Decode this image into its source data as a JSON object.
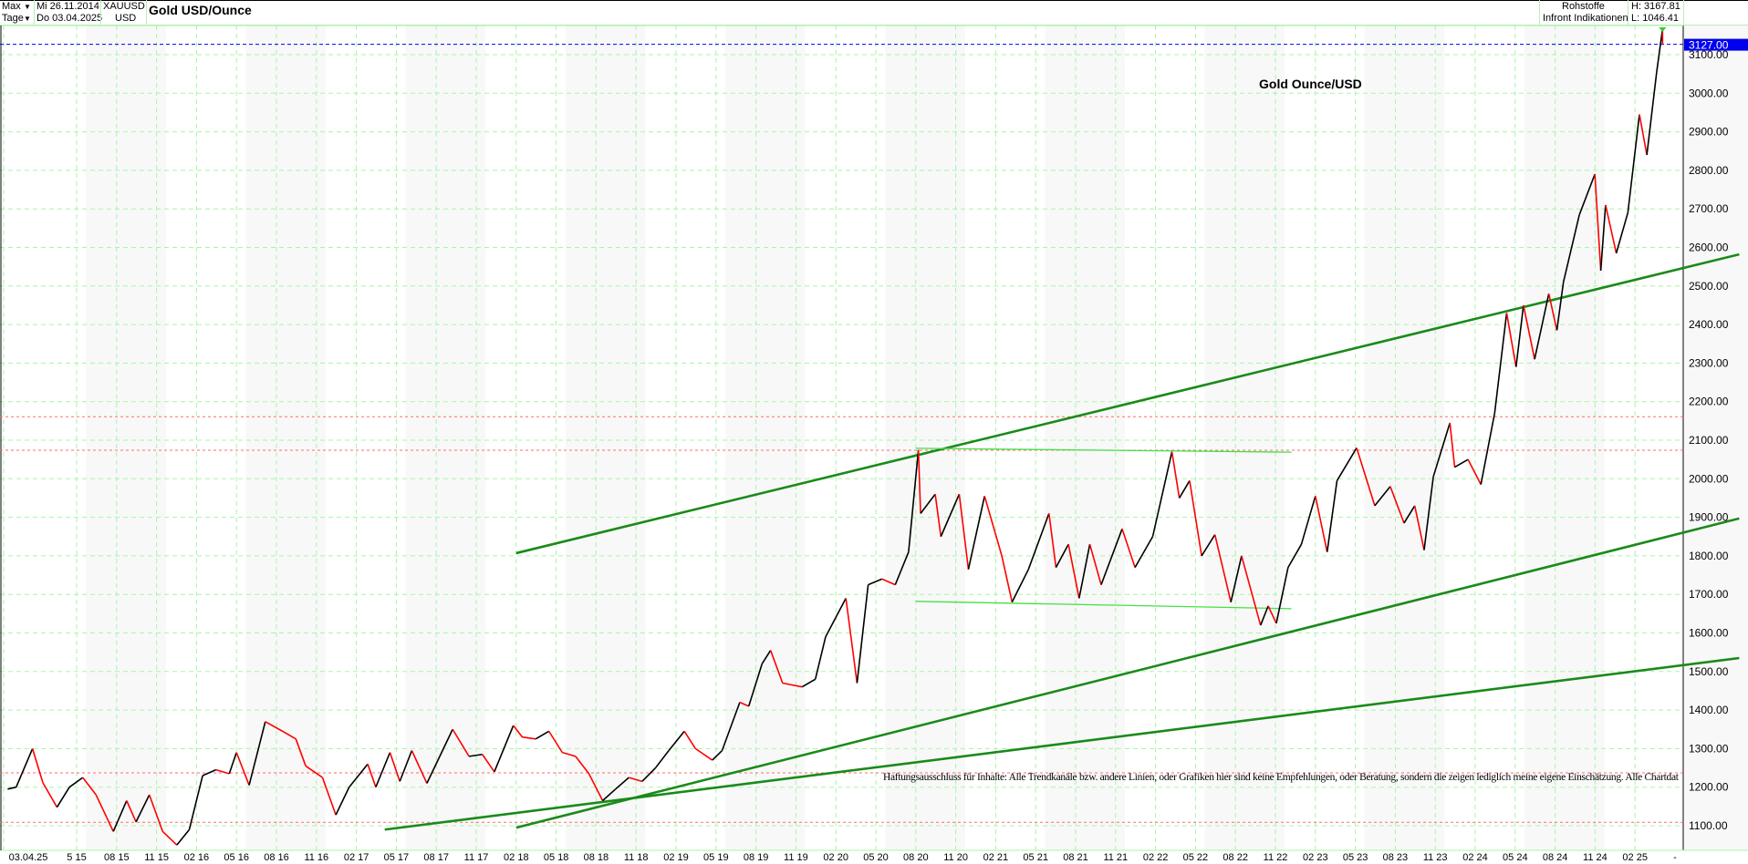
{
  "header": {
    "range_select": "Max",
    "interval_select": "Tage",
    "date_from": "Mi 26.11.2014",
    "date_to": "Do 03.04.2025",
    "symbol": "XAUUSD",
    "currency": "USD",
    "title": "Gold USD/Ounce",
    "category": "Rohstoffe",
    "source": "Infront Indikationen",
    "high": "H: 3167.81",
    "low": "L: 1046.41",
    "dropdown_icon": "triangle-down-icon"
  },
  "colors": {
    "up": "#000000",
    "down": "#ff0000",
    "grid": "#a8f5a8",
    "channel": "#1a8a1a",
    "range_lines": "#44e044",
    "support_resistance": "#ff6b6b",
    "current_price": "#0000ee"
  },
  "chart_data": {
    "type": "line",
    "title": "Gold Ounce/USD",
    "current_price_label": "3127.00",
    "ylim": [
      1050,
      3160
    ],
    "y_ticks": [
      "1100.00",
      "1200.00",
      "1300.00",
      "1400.00",
      "1500.00",
      "1600.00",
      "1700.00",
      "1800.00",
      "1900.00",
      "2000.00",
      "2100.00",
      "2200.00",
      "2300.00",
      "2400.00",
      "2500.00",
      "2600.00",
      "2700.00",
      "2800.00",
      "2900.00",
      "3000.00",
      "3100.00"
    ],
    "x_first_label": "03.04.25",
    "x_last_label": "-",
    "x_ticks": [
      "5 15",
      "08 15",
      "11 15",
      "02 16",
      "05 16",
      "08 16",
      "11 16",
      "02 17",
      "05 17",
      "08 17",
      "11 17",
      "02 18",
      "05 18",
      "08 18",
      "11 18",
      "02 19",
      "05 19",
      "08 19",
      "11 19",
      "02 20",
      "05 20",
      "08 20",
      "11 20",
      "02 21",
      "05 21",
      "08 21",
      "11 21",
      "02 22",
      "05 22",
      "08 22",
      "11 22",
      "02 23",
      "05 23",
      "08 23",
      "11 23",
      "02 24",
      "05 24",
      "08 24",
      "11 24",
      "02 25"
    ],
    "grid": true,
    "series": [
      {
        "points": [
          [
            "2014-11-26",
            1195
          ],
          [
            "2014-12-15",
            1200
          ],
          [
            "2015-01-22",
            1300
          ],
          [
            "2015-02-15",
            1212
          ],
          [
            "2015-03-17",
            1148
          ],
          [
            "2015-04-15",
            1200
          ],
          [
            "2015-05-15",
            1225
          ],
          [
            "2015-06-15",
            1180
          ],
          [
            "2015-07-24",
            1085
          ],
          [
            "2015-08-24",
            1165
          ],
          [
            "2015-09-15",
            1110
          ],
          [
            "2015-10-15",
            1180
          ],
          [
            "2015-11-15",
            1085
          ],
          [
            "2015-12-17",
            1050
          ],
          [
            "2016-01-15",
            1090
          ],
          [
            "2016-02-15",
            1230
          ],
          [
            "2016-03-15",
            1245
          ],
          [
            "2016-04-15",
            1235
          ],
          [
            "2016-05-01",
            1290
          ],
          [
            "2016-05-30",
            1205
          ],
          [
            "2016-07-06",
            1370
          ],
          [
            "2016-08-15",
            1345
          ],
          [
            "2016-09-15",
            1325
          ],
          [
            "2016-10-07",
            1255
          ],
          [
            "2016-11-15",
            1225
          ],
          [
            "2016-12-15",
            1128
          ],
          [
            "2017-01-15",
            1200
          ],
          [
            "2017-02-27",
            1260
          ],
          [
            "2017-03-15",
            1200
          ],
          [
            "2017-04-17",
            1290
          ],
          [
            "2017-05-09",
            1215
          ],
          [
            "2017-06-06",
            1295
          ],
          [
            "2017-07-10",
            1210
          ],
          [
            "2017-09-08",
            1350
          ],
          [
            "2017-10-15",
            1280
          ],
          [
            "2017-11-15",
            1285
          ],
          [
            "2017-12-12",
            1240
          ],
          [
            "2018-01-25",
            1360
          ],
          [
            "2018-02-15",
            1330
          ],
          [
            "2018-03-15",
            1325
          ],
          [
            "2018-04-15",
            1345
          ],
          [
            "2018-05-15",
            1290
          ],
          [
            "2018-06-15",
            1280
          ],
          [
            "2018-07-15",
            1235
          ],
          [
            "2018-08-16",
            1165
          ],
          [
            "2018-09-15",
            1195
          ],
          [
            "2018-10-15",
            1225
          ],
          [
            "2018-11-15",
            1215
          ],
          [
            "2018-12-15",
            1250
          ],
          [
            "2019-01-15",
            1295
          ],
          [
            "2019-02-20",
            1345
          ],
          [
            "2019-03-15",
            1300
          ],
          [
            "2019-04-23",
            1270
          ],
          [
            "2019-05-15",
            1295
          ],
          [
            "2019-06-25",
            1420
          ],
          [
            "2019-07-15",
            1410
          ],
          [
            "2019-08-15",
            1520
          ],
          [
            "2019-09-04",
            1555
          ],
          [
            "2019-10-01",
            1470
          ],
          [
            "2019-11-15",
            1460
          ],
          [
            "2019-12-15",
            1480
          ],
          [
            "2020-01-08",
            1590
          ],
          [
            "2020-02-24",
            1690
          ],
          [
            "2020-03-19",
            1470
          ],
          [
            "2020-04-14",
            1725
          ],
          [
            "2020-05-15",
            1740
          ],
          [
            "2020-06-15",
            1725
          ],
          [
            "2020-07-15",
            1810
          ],
          [
            "2020-08-07",
            2075
          ],
          [
            "2020-08-12",
            1910
          ],
          [
            "2020-09-15",
            1960
          ],
          [
            "2020-09-28",
            1850
          ],
          [
            "2020-11-09",
            1960
          ],
          [
            "2020-11-30",
            1765
          ],
          [
            "2021-01-06",
            1955
          ],
          [
            "2021-02-15",
            1800
          ],
          [
            "2021-03-08",
            1680
          ],
          [
            "2021-04-15",
            1765
          ],
          [
            "2021-06-01",
            1910
          ],
          [
            "2021-06-17",
            1770
          ],
          [
            "2021-07-15",
            1830
          ],
          [
            "2021-08-09",
            1690
          ],
          [
            "2021-09-03",
            1830
          ],
          [
            "2021-09-29",
            1725
          ],
          [
            "2021-11-16",
            1870
          ],
          [
            "2021-12-15",
            1770
          ],
          [
            "2022-01-25",
            1850
          ],
          [
            "2022-03-08",
            2070
          ],
          [
            "2022-03-25",
            1950
          ],
          [
            "2022-04-18",
            1995
          ],
          [
            "2022-05-15",
            1800
          ],
          [
            "2022-06-15",
            1855
          ],
          [
            "2022-07-21",
            1680
          ],
          [
            "2022-08-15",
            1800
          ],
          [
            "2022-09-28",
            1620
          ],
          [
            "2022-10-15",
            1670
          ],
          [
            "2022-11-03",
            1625
          ],
          [
            "2022-11-30",
            1770
          ],
          [
            "2022-12-30",
            1830
          ],
          [
            "2023-02-01",
            1955
          ],
          [
            "2023-02-28",
            1810
          ],
          [
            "2023-03-20",
            1995
          ],
          [
            "2023-05-04",
            2080
          ],
          [
            "2023-06-15",
            1930
          ],
          [
            "2023-07-20",
            1980
          ],
          [
            "2023-08-21",
            1885
          ],
          [
            "2023-09-15",
            1930
          ],
          [
            "2023-10-06",
            1815
          ],
          [
            "2023-10-27",
            2005
          ],
          [
            "2023-12-04",
            2145
          ],
          [
            "2023-12-15",
            2030
          ],
          [
            "2024-01-15",
            2050
          ],
          [
            "2024-02-14",
            1985
          ],
          [
            "2024-03-15",
            2170
          ],
          [
            "2024-04-12",
            2430
          ],
          [
            "2024-05-03",
            2290
          ],
          [
            "2024-05-20",
            2450
          ],
          [
            "2024-06-15",
            2310
          ],
          [
            "2024-07-17",
            2480
          ],
          [
            "2024-08-05",
            2385
          ],
          [
            "2024-08-20",
            2510
          ],
          [
            "2024-09-26",
            2685
          ],
          [
            "2024-10-31",
            2790
          ],
          [
            "2024-11-14",
            2540
          ],
          [
            "2024-11-25",
            2710
          ],
          [
            "2024-12-19",
            2585
          ],
          [
            "2025-01-15",
            2690
          ],
          [
            "2025-02-11",
            2945
          ],
          [
            "2025-02-28",
            2840
          ],
          [
            "2025-03-20",
            3055
          ],
          [
            "2025-04-03",
            3167
          ],
          [
            "2025-04-03",
            3127
          ]
        ]
      }
    ],
    "trendlines": [
      {
        "kind": "channel-upper",
        "from": [
          "2018-02-01",
          1807
        ],
        "to": [
          "2025-09-26",
          2582
        ]
      },
      {
        "kind": "channel-lower",
        "from": [
          "2018-02-01",
          1095
        ],
        "to": [
          "2025-09-26",
          1897
        ]
      },
      {
        "kind": "support",
        "from": [
          "2017-04-05",
          1090
        ],
        "to": [
          "2025-09-26",
          1535
        ]
      },
      {
        "kind": "range-top",
        "from": [
          "2020-08-01",
          2079
        ],
        "to": [
          "2022-12-07",
          2069
        ]
      },
      {
        "kind": "range-bottom",
        "from": [
          "2020-08-01",
          1682
        ],
        "to": [
          "2022-12-07",
          1663
        ]
      }
    ],
    "horizontal_lines": [
      2161,
      2074,
      1237,
      1109
    ],
    "disclaimer": "Haftungsausschluss für Inhalte: Alle Trendkanäle bzw. andere Linien, oder Grafiken hier sind keine Empfehlungen, oder Beratung, sondern die zeigen lediglich meine eigene Einschätzung. Alle Chartdaten sind ohne G"
  }
}
